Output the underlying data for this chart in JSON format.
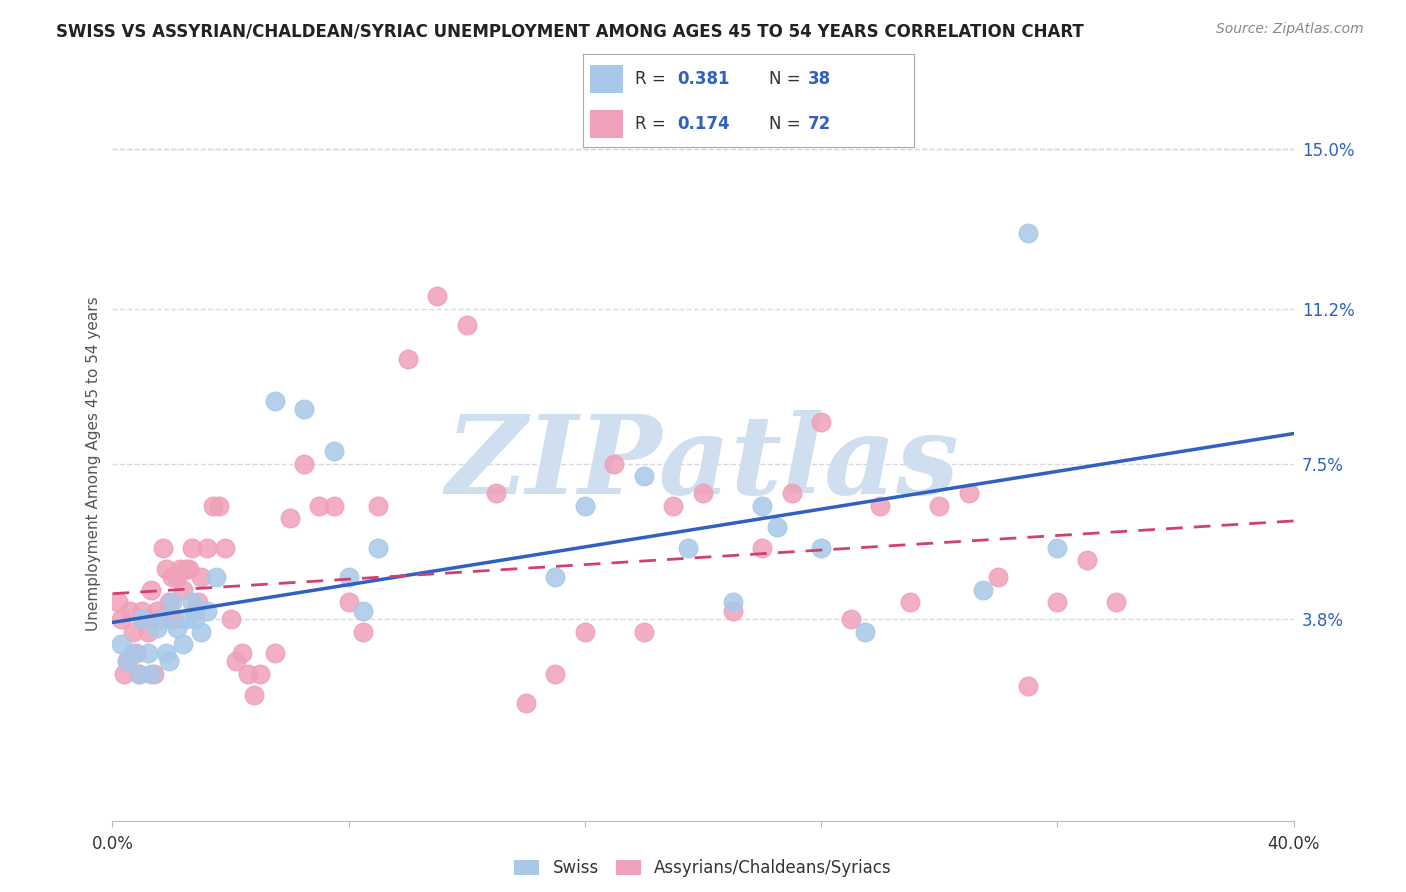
{
  "title": "SWISS VS ASSYRIAN/CHALDEAN/SYRIAC UNEMPLOYMENT AMONG AGES 45 TO 54 YEARS CORRELATION CHART",
  "source": "Source: ZipAtlas.com",
  "ylabel": "Unemployment Among Ages 45 to 54 years",
  "xlim": [
    0.0,
    0.4
  ],
  "ylim": [
    -0.01,
    0.16
  ],
  "ytick_labels_right": [
    "15.0%",
    "11.2%",
    "7.5%",
    "3.8%"
  ],
  "ytick_values_right": [
    0.15,
    0.112,
    0.075,
    0.038
  ],
  "swiss_R": 0.381,
  "swiss_N": 38,
  "assyrian_R": 0.174,
  "assyrian_N": 72,
  "swiss_color": "#a8c8e8",
  "assyrian_color": "#f0a0b8",
  "swiss_line_color": "#3060c0",
  "assyrian_line_color": "#d04070",
  "legend_label_swiss": "Swiss",
  "legend_label_assyrian": "Assyrians/Chaldeans/Syriacs",
  "swiss_x": [
    0.003,
    0.005,
    0.007,
    0.009,
    0.01,
    0.012,
    0.013,
    0.015,
    0.017,
    0.018,
    0.019,
    0.02,
    0.022,
    0.024,
    0.025,
    0.027,
    0.028,
    0.03,
    0.032,
    0.035,
    0.055,
    0.065,
    0.075,
    0.08,
    0.085,
    0.09,
    0.15,
    0.16,
    0.18,
    0.195,
    0.21,
    0.22,
    0.225,
    0.24,
    0.255,
    0.295,
    0.31,
    0.32
  ],
  "swiss_y": [
    0.032,
    0.028,
    0.03,
    0.025,
    0.038,
    0.03,
    0.025,
    0.036,
    0.038,
    0.03,
    0.028,
    0.042,
    0.036,
    0.032,
    0.038,
    0.042,
    0.038,
    0.035,
    0.04,
    0.048,
    0.09,
    0.088,
    0.078,
    0.048,
    0.04,
    0.055,
    0.048,
    0.065,
    0.072,
    0.055,
    0.042,
    0.065,
    0.06,
    0.055,
    0.035,
    0.045,
    0.13,
    0.055
  ],
  "assyrian_x": [
    0.002,
    0.003,
    0.004,
    0.005,
    0.006,
    0.007,
    0.008,
    0.009,
    0.01,
    0.011,
    0.012,
    0.013,
    0.014,
    0.015,
    0.016,
    0.017,
    0.018,
    0.019,
    0.02,
    0.021,
    0.022,
    0.023,
    0.024,
    0.025,
    0.026,
    0.027,
    0.028,
    0.029,
    0.03,
    0.032,
    0.034,
    0.036,
    0.038,
    0.04,
    0.042,
    0.044,
    0.046,
    0.048,
    0.05,
    0.055,
    0.06,
    0.065,
    0.07,
    0.075,
    0.08,
    0.085,
    0.09,
    0.1,
    0.11,
    0.12,
    0.13,
    0.14,
    0.15,
    0.16,
    0.17,
    0.18,
    0.19,
    0.2,
    0.21,
    0.22,
    0.23,
    0.24,
    0.25,
    0.26,
    0.27,
    0.28,
    0.29,
    0.3,
    0.31,
    0.32,
    0.33,
    0.34
  ],
  "assyrian_y": [
    0.042,
    0.038,
    0.025,
    0.028,
    0.04,
    0.035,
    0.03,
    0.025,
    0.04,
    0.038,
    0.035,
    0.045,
    0.025,
    0.04,
    0.038,
    0.055,
    0.05,
    0.042,
    0.048,
    0.038,
    0.048,
    0.05,
    0.045,
    0.05,
    0.05,
    0.055,
    0.04,
    0.042,
    0.048,
    0.055,
    0.065,
    0.065,
    0.055,
    0.038,
    0.028,
    0.03,
    0.025,
    0.02,
    0.025,
    0.03,
    0.062,
    0.075,
    0.065,
    0.065,
    0.042,
    0.035,
    0.065,
    0.1,
    0.115,
    0.108,
    0.068,
    0.018,
    0.025,
    0.035,
    0.075,
    0.035,
    0.065,
    0.068,
    0.04,
    0.055,
    0.068,
    0.085,
    0.038,
    0.065,
    0.042,
    0.065,
    0.068,
    0.048,
    0.022,
    0.042,
    0.052,
    0.042
  ],
  "background_color": "#ffffff",
  "grid_color": "#d8d8e8",
  "watermark": "ZIPatlas",
  "watermark_color": "#d0dff0"
}
